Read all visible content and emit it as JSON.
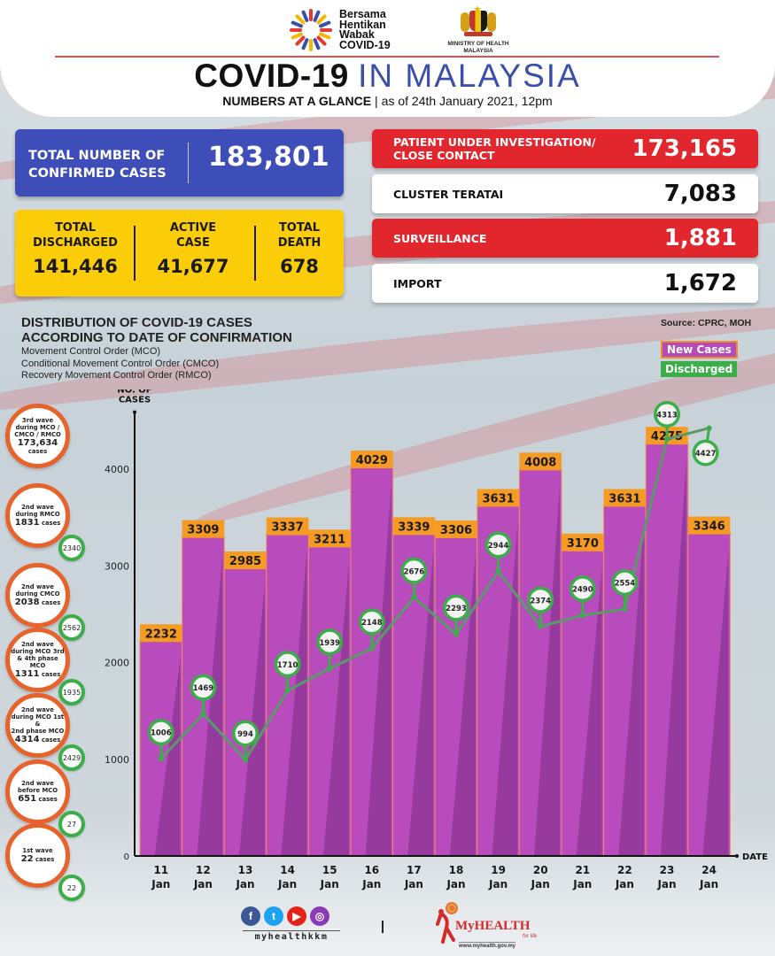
{
  "header": {
    "logo_campaign_lines": [
      "Bersama",
      "Hentikan",
      "Wabak",
      "COVID-19"
    ],
    "ministry_lines": [
      "MINISTRY OF HEALTH",
      "MALAYSIA"
    ],
    "title_bold": "COVID-19",
    "title_light": "IN MALAYSIA",
    "subtitle_bold": "NUMBERS AT A GLANCE",
    "subtitle_separator": "|",
    "subtitle_date": "as of 24th January 2021, 12pm"
  },
  "summary": {
    "confirmed": {
      "label_lines": [
        "TOTAL NUMBER OF",
        "CONFIRMED CASES"
      ],
      "value": "183,801"
    },
    "discharged": {
      "label_lines": [
        "TOTAL",
        "DISCHARGED"
      ],
      "value": "141,446"
    },
    "active": {
      "label_lines": [
        "ACTIVE",
        "CASE"
      ],
      "value": "41,677"
    },
    "death": {
      "label_lines": [
        "TOTAL",
        "DEATH"
      ],
      "value": "678"
    }
  },
  "sources": [
    {
      "label_lines": [
        "PATIENT UNDER INVESTIGATION/",
        "CLOSE CONTACT"
      ],
      "value": "173,165",
      "style": "red"
    },
    {
      "label_lines": [
        "CLUSTER TERATAI"
      ],
      "value": "7,083",
      "style": "white"
    },
    {
      "label_lines": [
        "SURVEILLANCE"
      ],
      "value": "1,881",
      "style": "red"
    },
    {
      "label_lines": [
        "IMPORT"
      ],
      "value": "1,672",
      "style": "white"
    }
  ],
  "distribution": {
    "title_lines": [
      "DISTRIBUTION OF COVID-19 CASES",
      "ACCORDING TO DATE OF CONFIRMATION"
    ],
    "legend_lines": [
      "Movement Control Order (MCO)",
      "Conditional Movement Control Order (CMCO)",
      "Recovery Movement Control Order (RMCO)"
    ],
    "source": "Source: CPRC, MOH"
  },
  "waves": [
    {
      "lines": [
        "3rd wave",
        "during MCO /",
        "CMCO / RMCO"
      ],
      "number": "173,634",
      "unit": "cases",
      "discharged": null
    },
    {
      "lines": [
        "2nd wave",
        "during RMCO"
      ],
      "number": "1831",
      "unit": "cases",
      "discharged": "2340"
    },
    {
      "lines": [
        "2nd wave",
        "during CMCO"
      ],
      "number": "2038",
      "unit": "cases",
      "discharged": "2562"
    },
    {
      "lines": [
        "2nd wave",
        "during MCO 3rd",
        "& 4th phase MCO"
      ],
      "number": "1311",
      "unit": "cases",
      "discharged": "1935"
    },
    {
      "lines": [
        "2nd wave",
        "during MCO 1st &",
        "2nd phase MCO"
      ],
      "number": "4314",
      "unit": "cases",
      "discharged": "2429"
    },
    {
      "lines": [
        "2nd wave",
        "before MCO"
      ],
      "number": "651",
      "unit": "cases",
      "discharged": "27"
    },
    {
      "lines": [
        "1st wave"
      ],
      "number": "22",
      "unit": "cases",
      "discharged": "22"
    }
  ],
  "chart_data": {
    "type": "bar",
    "title": "DISTRIBUTION OF COVID-19 CASES ACCORDING TO DATE OF CONFIRMATION",
    "xlabel": "DATE",
    "ylabel": "NO. OF CASES",
    "ylim": [
      0,
      4500
    ],
    "yticks": [
      0,
      1000,
      2000,
      3000,
      4000
    ],
    "categories": [
      "11 Jan",
      "12 Jan",
      "13 Jan",
      "14 Jan",
      "15 Jan",
      "16 Jan",
      "17 Jan",
      "18 Jan",
      "19 Jan",
      "20 Jan",
      "21 Jan",
      "22 Jan",
      "23 Jan",
      "24 Jan"
    ],
    "series": [
      {
        "name": "New Cases",
        "type": "bar",
        "color": "#b44bb8",
        "label_color": "#f59a23",
        "values": [
          2232,
          3309,
          2985,
          3337,
          3211,
          4029,
          3339,
          3306,
          3631,
          4008,
          3170,
          3631,
          4275,
          3346
        ]
      },
      {
        "name": "Discharged",
        "type": "line",
        "color": "#3bae4a",
        "values": [
          1006,
          1469,
          994,
          1710,
          1939,
          2148,
          2676,
          2293,
          2944,
          2374,
          2490,
          2554,
          4313,
          4427
        ]
      }
    ],
    "legend": [
      "New Cases",
      "Discharged"
    ],
    "legend_position": "top-right",
    "grid": false
  },
  "footer": {
    "social_icons": [
      "facebook-icon",
      "twitter-icon",
      "youtube-icon",
      "instagram-icon"
    ],
    "social_glyphs": [
      "f",
      "t",
      "▶",
      "◎"
    ],
    "social_colors": [
      "#3b5998",
      "#1da1f2",
      "#e62117",
      "#8a3ab9"
    ],
    "handle": "myhealthkkm",
    "separator": "|",
    "brand": "MyHEALTH",
    "brand_tagline": "for life",
    "url": "www.myhealth.gov.my"
  }
}
